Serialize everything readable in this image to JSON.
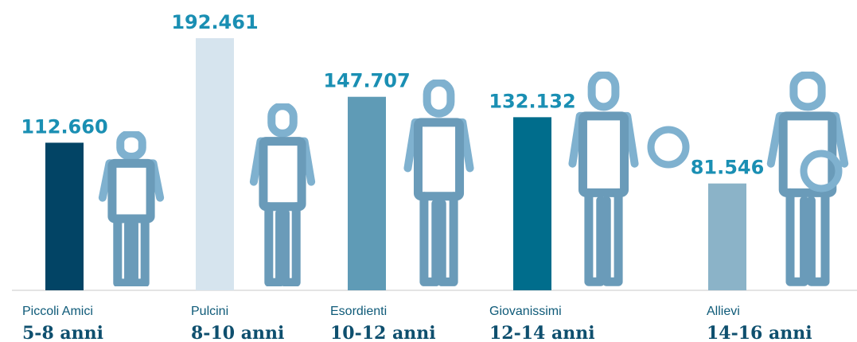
{
  "chart_data": {
    "type": "bar",
    "categories": [
      "Piccoli Amici",
      "Pulcini",
      "Esordienti",
      "Giovanissimi",
      "Allievi"
    ],
    "age_groups": [
      "5-8 anni",
      "8-10 anni",
      "10-12 anni",
      "12-14 anni",
      "14-16 anni"
    ],
    "values": [
      112660,
      192461,
      147707,
      132132,
      81546
    ],
    "value_labels": [
      "112.660",
      "192.461",
      "147.707",
      "132.132",
      "81.546"
    ],
    "colors": [
      "#024465",
      "#d6e4ee",
      "#5f9bb6",
      "#006d8c",
      "#8bb3c8"
    ]
  }
}
